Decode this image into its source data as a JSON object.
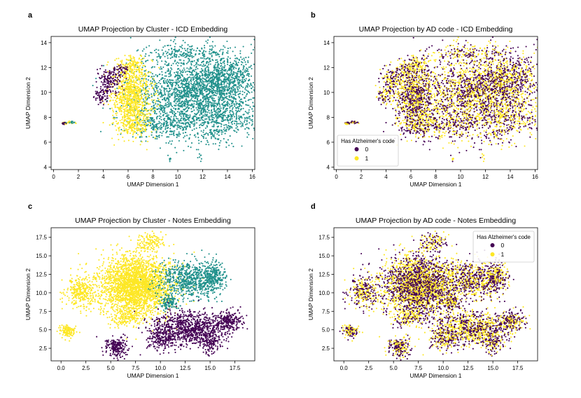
{
  "colors": {
    "dark": "#440154",
    "teal": "#21918c",
    "yellow": "#fde725"
  },
  "chart_data": [
    {
      "panel": "a",
      "type": "scatter",
      "title": "UMAP Projection by Cluster - ICD Embedding",
      "xlabel": "UMAP Dimension 1",
      "ylabel": "UMAP Dimension 2",
      "xlim": [
        -0.2,
        16.2
      ],
      "ylim": [
        3.8,
        14.5
      ],
      "xticks": [
        0,
        2,
        4,
        6,
        8,
        10,
        12,
        14,
        16
      ],
      "yticks": [
        4,
        6,
        8,
        10,
        12,
        14
      ],
      "colored_by": "cluster",
      "regions": [
        {
          "group": "teal",
          "cx": 11.5,
          "cy": 9.8,
          "sx": 2.6,
          "sy": 1.6,
          "n": 2200
        },
        {
          "group": "teal",
          "cx": 13.5,
          "cy": 11.2,
          "sx": 1.2,
          "sy": 1.0,
          "n": 500
        },
        {
          "group": "teal",
          "cx": 10.5,
          "cy": 13.2,
          "sx": 1.5,
          "sy": 0.4,
          "n": 150
        },
        {
          "group": "teal",
          "cx": 8.8,
          "cy": 7.4,
          "sx": 1.3,
          "sy": 0.5,
          "n": 250
        },
        {
          "group": "teal",
          "cx": 14.2,
          "cy": 7.7,
          "sx": 0.9,
          "sy": 0.4,
          "n": 120
        },
        {
          "group": "teal",
          "cx": 13.0,
          "cy": 6.7,
          "sx": 0.5,
          "sy": 0.3,
          "n": 40
        },
        {
          "group": "yellow",
          "cx": 6.3,
          "cy": 9.6,
          "sx": 0.8,
          "sy": 1.3,
          "n": 900
        },
        {
          "group": "yellow",
          "cx": 6.2,
          "cy": 12.0,
          "sx": 0.6,
          "sy": 0.5,
          "n": 150
        },
        {
          "group": "yellow",
          "cx": 6.4,
          "cy": 7.2,
          "sx": 0.7,
          "sy": 0.4,
          "n": 120
        },
        {
          "group": "dark",
          "cx": 4.5,
          "cy": 10.9,
          "sx": 0.5,
          "sy": 0.5,
          "n": 150
        },
        {
          "group": "dark",
          "cx": 3.8,
          "cy": 9.6,
          "sx": 0.3,
          "sy": 0.3,
          "n": 60
        },
        {
          "group": "dark",
          "cx": 5.4,
          "cy": 11.8,
          "sx": 0.3,
          "sy": 0.3,
          "n": 40
        },
        {
          "group": "yellow",
          "cx": 1.1,
          "cy": 7.55,
          "sx": 0.25,
          "sy": 0.05,
          "n": 30
        },
        {
          "group": "dark",
          "cx": 0.85,
          "cy": 7.5,
          "sx": 0.1,
          "sy": 0.05,
          "n": 10
        },
        {
          "group": "teal",
          "cx": 1.5,
          "cy": 7.6,
          "sx": 0.15,
          "sy": 0.05,
          "n": 10
        },
        {
          "group": "teal",
          "cx": 11.8,
          "cy": 4.9,
          "sx": 0.1,
          "sy": 0.2,
          "n": 8
        },
        {
          "group": "teal",
          "cx": 9.4,
          "cy": 4.6,
          "sx": 0.05,
          "sy": 0.1,
          "n": 5
        }
      ]
    },
    {
      "panel": "b",
      "type": "scatter",
      "title": "UMAP Projection by AD code - ICD Embedding",
      "xlabel": "UMAP Dimension 1",
      "ylabel": "UMAP Dimension 2",
      "xlim": [
        -0.2,
        16.2
      ],
      "ylim": [
        3.8,
        14.5
      ],
      "xticks": [
        0,
        2,
        4,
        6,
        8,
        10,
        12,
        14,
        16
      ],
      "yticks": [
        4,
        6,
        8,
        10,
        12,
        14
      ],
      "colored_by": "ad_code",
      "legend": {
        "title": "Has Alzheimer's code",
        "items": [
          "0",
          "1"
        ],
        "loc": "lower-left"
      }
    },
    {
      "panel": "c",
      "type": "scatter",
      "title": "UMAP Projection by Cluster - Notes Embedding",
      "xlabel": "UMAP Dimension 1",
      "ylabel": "UMAP Dimension 2",
      "xlim": [
        -1.0,
        19.5
      ],
      "ylim": [
        0.8,
        18.8
      ],
      "xticks": [
        0.0,
        2.5,
        5.0,
        7.5,
        10.0,
        12.5,
        15.0,
        17.5
      ],
      "yticks": [
        2.5,
        5.0,
        7.5,
        10.0,
        12.5,
        15.0,
        17.5
      ],
      "colored_by": "cluster",
      "regions": [
        {
          "group": "yellow",
          "cx": 7.5,
          "cy": 11.0,
          "sx": 1.8,
          "sy": 2.0,
          "n": 2600
        },
        {
          "group": "yellow",
          "cx": 2.0,
          "cy": 10.2,
          "sx": 0.8,
          "sy": 1.1,
          "n": 300
        },
        {
          "group": "yellow",
          "cx": 0.6,
          "cy": 4.8,
          "sx": 0.4,
          "sy": 0.4,
          "n": 120
        },
        {
          "group": "yellow",
          "cx": 9.0,
          "cy": 16.8,
          "sx": 0.6,
          "sy": 0.7,
          "n": 120
        },
        {
          "group": "yellow",
          "cx": 6.6,
          "cy": 6.6,
          "sx": 0.8,
          "sy": 0.5,
          "n": 130
        },
        {
          "group": "teal",
          "cx": 12.8,
          "cy": 11.8,
          "sx": 1.5,
          "sy": 1.3,
          "n": 650
        },
        {
          "group": "teal",
          "cx": 15.4,
          "cy": 12.2,
          "sx": 0.6,
          "sy": 1.0,
          "n": 250
        },
        {
          "group": "teal",
          "cx": 10.8,
          "cy": 8.7,
          "sx": 0.5,
          "sy": 0.5,
          "n": 120
        },
        {
          "group": "dark",
          "cx": 13.0,
          "cy": 5.2,
          "sx": 1.8,
          "sy": 1.2,
          "n": 900
        },
        {
          "group": "dark",
          "cx": 16.8,
          "cy": 6.2,
          "sx": 0.8,
          "sy": 0.6,
          "n": 220
        },
        {
          "group": "dark",
          "cx": 5.6,
          "cy": 2.6,
          "sx": 0.6,
          "sy": 0.7,
          "n": 200
        },
        {
          "group": "dark",
          "cx": 10.2,
          "cy": 4.0,
          "sx": 0.7,
          "sy": 0.8,
          "n": 200
        },
        {
          "group": "dark",
          "cx": 15.0,
          "cy": 3.2,
          "sx": 0.5,
          "sy": 0.7,
          "n": 100
        }
      ]
    },
    {
      "panel": "d",
      "type": "scatter",
      "title": "UMAP Projection by AD code - Notes Embedding",
      "xlabel": "UMAP Dimension 1",
      "ylabel": "UMAP Dimension 2",
      "xlim": [
        -1.0,
        19.5
      ],
      "ylim": [
        0.8,
        18.8
      ],
      "xticks": [
        0.0,
        2.5,
        5.0,
        7.5,
        10.0,
        12.5,
        15.0,
        17.5
      ],
      "yticks": [
        2.5,
        5.0,
        7.5,
        10.0,
        12.5,
        15.0,
        17.5
      ],
      "colored_by": "ad_code",
      "legend": {
        "title": "Has Alzheimer's code",
        "items": [
          "0",
          "1"
        ],
        "loc": "upper-right"
      }
    }
  ]
}
